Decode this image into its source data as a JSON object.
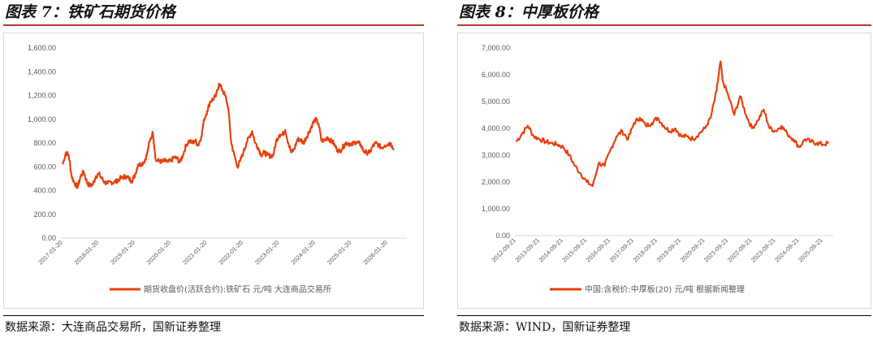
{
  "figures": [
    {
      "title": "图表 7：铁矿石期货价格",
      "source": "数据来源：大连商品交易所，国新证券整理"
    },
    {
      "title": "图表 8：中厚板价格",
      "source": "数据来源：WIND，国新证券整理"
    }
  ],
  "colors": {
    "series": "#e8400c",
    "title_rule": "#c0392b"
  },
  "chart_data": [
    {
      "type": "line",
      "title": "",
      "xlabel": "",
      "ylabel": "",
      "ylim": [
        0,
        1600
      ],
      "xlim": [
        "2017-01-01",
        "2026-08-01"
      ],
      "yticks": [
        "0.00",
        "200.00",
        "400.00",
        "600.00",
        "800.00",
        "1,000.00",
        "1,200.00",
        "1,400.00",
        "1,600.00"
      ],
      "xticks": [
        "2017-01-20",
        "2018-01-20",
        "2019-01-20",
        "2020-01-20",
        "2021-01-20",
        "2022-01-20",
        "2023-01-20",
        "2024-01-20",
        "2025-01-20",
        "2026-01-20"
      ],
      "grid": false,
      "legend": "bottom",
      "series": [
        {
          "name": "期货收盘价(活跃合约):铁矿石 元/吨 大连商品交易所",
          "x": [
            "2017-01-20",
            "2017-02-20",
            "2017-03-20",
            "2017-04-20",
            "2017-05-20",
            "2017-06-20",
            "2017-07-20",
            "2017-08-20",
            "2017-09-20",
            "2017-10-20",
            "2017-11-20",
            "2017-12-20",
            "2018-01-20",
            "2018-02-20",
            "2018-03-20",
            "2018-04-20",
            "2018-05-20",
            "2018-06-20",
            "2018-07-20",
            "2018-08-20",
            "2018-09-20",
            "2018-10-20",
            "2018-11-20",
            "2018-12-20",
            "2019-01-20",
            "2019-02-20",
            "2019-03-20",
            "2019-04-20",
            "2019-05-20",
            "2019-06-20",
            "2019-07-20",
            "2019-08-20",
            "2019-09-20",
            "2019-10-20",
            "2019-11-20",
            "2019-12-20",
            "2020-01-20",
            "2020-02-20",
            "2020-03-20",
            "2020-04-20",
            "2020-05-20",
            "2020-06-20",
            "2020-07-20",
            "2020-08-20",
            "2020-09-20",
            "2020-10-20",
            "2020-11-20",
            "2020-12-20",
            "2021-01-20",
            "2021-02-20",
            "2021-03-20",
            "2021-04-20",
            "2021-05-20",
            "2021-06-20",
            "2021-07-20",
            "2021-08-20",
            "2021-09-20",
            "2021-10-20",
            "2021-11-20",
            "2021-12-20",
            "2022-01-20",
            "2022-02-20",
            "2022-03-20",
            "2022-04-20",
            "2022-05-20",
            "2022-06-20",
            "2022-07-20",
            "2022-08-20",
            "2022-09-20",
            "2022-10-20",
            "2022-11-20",
            "2022-12-20",
            "2023-01-20",
            "2023-02-20",
            "2023-03-20",
            "2023-04-20",
            "2023-05-20",
            "2023-06-20",
            "2023-07-20",
            "2023-08-20",
            "2023-09-20",
            "2023-10-20",
            "2023-11-20",
            "2023-12-20",
            "2024-01-20",
            "2024-02-20",
            "2024-03-20",
            "2024-04-20",
            "2024-05-20",
            "2024-06-20",
            "2024-07-20",
            "2024-08-20",
            "2024-09-20",
            "2024-10-20",
            "2024-11-20",
            "2024-12-20",
            "2025-01-20",
            "2025-02-20",
            "2025-03-20",
            "2025-04-20",
            "2025-05-20",
            "2025-06-20",
            "2025-07-20",
            "2025-08-20",
            "2025-09-20",
            "2025-10-20",
            "2025-11-20",
            "2025-12-20",
            "2026-01-20",
            "2026-02-20",
            "2026-03-20"
          ],
          "values": [
            620,
            720,
            700,
            520,
            460,
            430,
            520,
            560,
            470,
            440,
            450,
            520,
            540,
            500,
            470,
            460,
            470,
            470,
            480,
            500,
            510,
            520,
            500,
            480,
            530,
            620,
            620,
            640,
            700,
            820,
            890,
            650,
            650,
            640,
            650,
            640,
            650,
            680,
            670,
            640,
            700,
            780,
            820,
            800,
            820,
            780,
            850,
            1000,
            1070,
            1150,
            1170,
            1200,
            1300,
            1250,
            1200,
            1100,
            800,
            700,
            600,
            650,
            720,
            800,
            850,
            900,
            800,
            760,
            700,
            720,
            700,
            690,
            700,
            820,
            870,
            870,
            910,
            800,
            720,
            750,
            830,
            830,
            800,
            850,
            900,
            960,
            1000,
            960,
            820,
            820,
            850,
            820,
            800,
            750,
            730,
            760,
            800,
            800,
            780,
            810,
            800,
            790,
            730,
            720,
            720,
            770,
            800,
            780,
            760,
            780,
            790,
            800,
            740
          ]
        }
      ]
    },
    {
      "type": "line",
      "title": "",
      "xlabel": "",
      "ylabel": "",
      "ylim": [
        0,
        7000
      ],
      "xlim": [
        "2012-09-01",
        "2026-03-01"
      ],
      "yticks": [
        "0.00",
        "1,000.00",
        "2,000.00",
        "3,000.00",
        "4,000.00",
        "5,000.00",
        "6,000.00",
        "7,000.00"
      ],
      "xticks": [
        "2012-09-21",
        "2013-09-21",
        "2014-09-21",
        "2015-09-21",
        "2016-09-21",
        "2017-09-21",
        "2018-09-21",
        "2019-09-21",
        "2020-09-21",
        "2021-09-21",
        "2022-09-21",
        "2023-09-21",
        "2024-09-21",
        "2025-09-21"
      ],
      "grid": false,
      "legend": "bottom",
      "series": [
        {
          "name": "中国:含税价:中厚板(20) 元/吨 根据新闻整理",
          "x": [
            "2012-09-21",
            "2012-12-21",
            "2013-03-21",
            "2013-06-21",
            "2013-09-21",
            "2013-12-21",
            "2014-03-21",
            "2014-06-21",
            "2014-09-21",
            "2014-12-21",
            "2015-03-21",
            "2015-06-21",
            "2015-09-21",
            "2015-12-21",
            "2016-03-21",
            "2016-06-21",
            "2016-09-21",
            "2016-12-21",
            "2017-03-21",
            "2017-06-21",
            "2017-09-21",
            "2017-12-21",
            "2018-03-21",
            "2018-06-21",
            "2018-09-21",
            "2018-12-21",
            "2019-03-21",
            "2019-06-21",
            "2019-09-21",
            "2019-12-21",
            "2020-03-21",
            "2020-06-21",
            "2020-09-21",
            "2020-12-21",
            "2021-03-21",
            "2021-05-21",
            "2021-06-21",
            "2021-09-21",
            "2021-12-21",
            "2022-03-21",
            "2022-06-21",
            "2022-09-21",
            "2022-12-21",
            "2023-03-21",
            "2023-06-21",
            "2023-09-21",
            "2023-12-21",
            "2024-03-21",
            "2024-06-21",
            "2024-09-21",
            "2024-12-21",
            "2025-03-21",
            "2025-06-21",
            "2025-09-21",
            "2025-12-21"
          ],
          "values": [
            3500,
            3800,
            4100,
            3700,
            3600,
            3500,
            3450,
            3400,
            3300,
            3000,
            2600,
            2300,
            2000,
            1850,
            2700,
            2600,
            3200,
            3700,
            3900,
            3600,
            4200,
            4400,
            4100,
            4200,
            4400,
            4100,
            3900,
            4000,
            3700,
            3700,
            3600,
            3800,
            4000,
            4400,
            5400,
            6500,
            5800,
            5200,
            4500,
            5200,
            4500,
            4000,
            4300,
            4700,
            4000,
            3900,
            4100,
            3800,
            3600,
            3300,
            3600,
            3500,
            3450,
            3400,
            3450
          ]
        }
      ]
    }
  ]
}
